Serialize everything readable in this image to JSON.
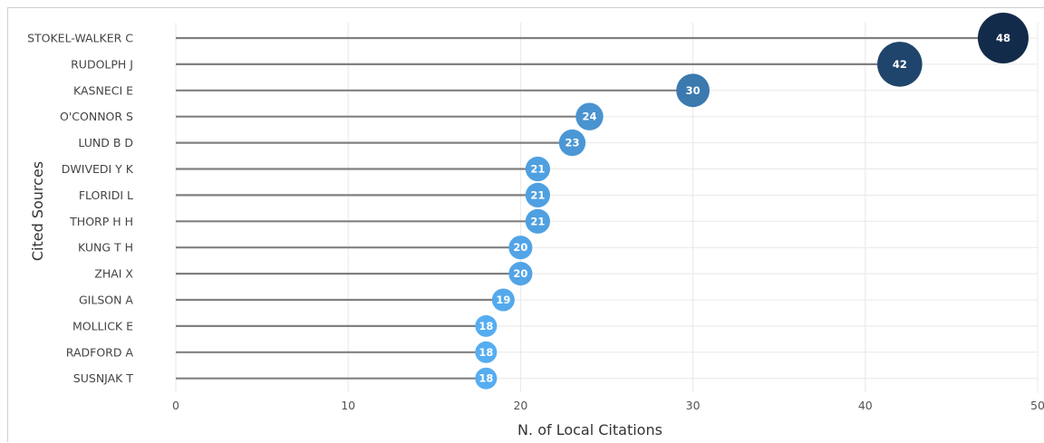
{
  "chart_data": {
    "type": "scatter",
    "style": "lollipop",
    "xlabel": "N. of Local Citations",
    "ylabel": "Cited Sources",
    "xlim": [
      0,
      50
    ],
    "xticks": [
      0,
      10,
      20,
      30,
      40,
      50
    ],
    "xtick_labels": [
      "0",
      "10",
      "20",
      "30",
      "40",
      "50"
    ],
    "grid": true,
    "categories": [
      "STOKEL-WALKER C",
      "RUDOLPH J",
      "KASNECI E",
      "O'CONNOR S",
      "LUND B D",
      "DWIVEDI Y K",
      "FLORIDI L",
      "THORP H H",
      "KUNG T H",
      "ZHAI X",
      "GILSON A",
      "MOLLICK E",
      "RADFORD A",
      "SUSNJAK T"
    ],
    "values": [
      48,
      42,
      30,
      24,
      23,
      21,
      21,
      21,
      20,
      20,
      19,
      18,
      18,
      18
    ],
    "value_labels": [
      "48",
      "42",
      "30",
      "24",
      "23",
      "21",
      "21",
      "21",
      "20",
      "20",
      "19",
      "18",
      "18",
      "18"
    ],
    "colors": {
      "stem": "#808080",
      "grid": "#e8e8e8",
      "scale_low": "#56adf2",
      "scale_high": "#132b4a"
    }
  }
}
